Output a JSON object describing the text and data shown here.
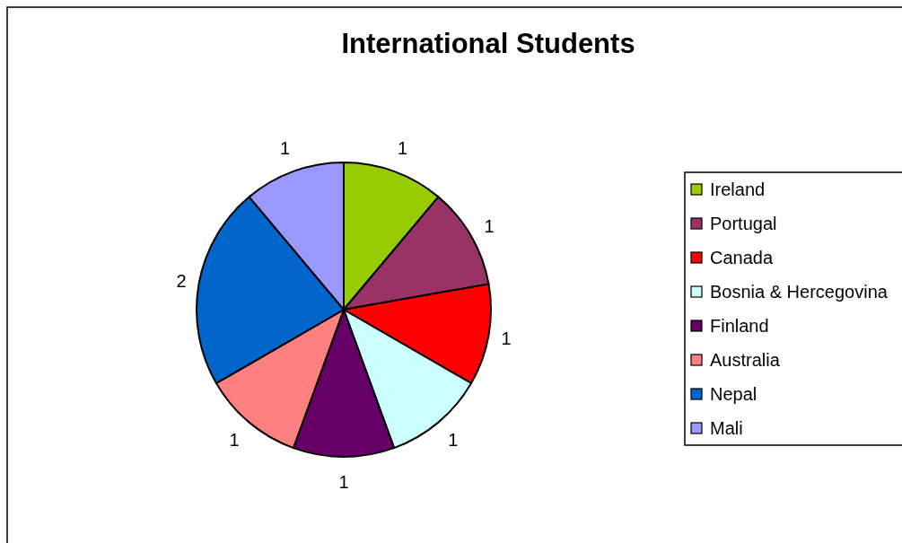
{
  "chart_data": {
    "type": "pie",
    "title": "International Students",
    "categories": [
      "Ireland",
      "Portugal",
      "Canada",
      "Bosnia & Hercegovina",
      "Finland",
      "Australia",
      "Nepal",
      "Mali"
    ],
    "values": [
      1,
      1,
      1,
      1,
      1,
      1,
      2,
      1
    ],
    "colors": [
      "#99cc00",
      "#993366",
      "#ff0000",
      "#ccffff",
      "#660066",
      "#ff8080",
      "#0066cc",
      "#9999ff"
    ],
    "data_labels": true,
    "legend": "right"
  }
}
